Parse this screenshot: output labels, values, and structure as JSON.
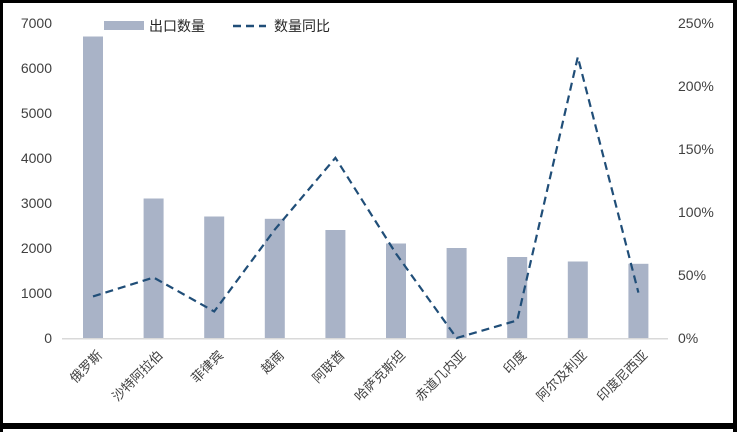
{
  "chart_data": {
    "type": "bar+line combo",
    "title": "",
    "categories": [
      "俄罗斯",
      "沙特阿拉伯",
      "菲律宾",
      "越南",
      "阿联酋",
      "哈萨克斯坦",
      "赤道几内亚",
      "印度",
      "阿尔及利亚",
      "印度尼西亚"
    ],
    "series": [
      {
        "name": "出口数量",
        "type": "bar",
        "axis": "left",
        "color": "#a9b3c7",
        "values": [
          6700,
          3100,
          2700,
          2650,
          2400,
          2100,
          2000,
          1800,
          1700,
          1650
        ]
      },
      {
        "name": "数量同比",
        "type": "dashed-line",
        "axis": "right",
        "color": "#204e78",
        "values_pct": [
          33,
          48,
          21,
          86,
          143,
          67,
          0,
          14,
          223,
          36
        ]
      }
    ],
    "left_axis": {
      "min": 0,
      "max": 7000,
      "step": 1000,
      "ticks": [
        "0",
        "1000",
        "2000",
        "3000",
        "4000",
        "5000",
        "6000",
        "7000"
      ]
    },
    "right_axis": {
      "min_pct": 0,
      "max_pct": 250,
      "step_pct": 50,
      "ticks": [
        "0%",
        "50%",
        "100%",
        "150%",
        "200%",
        "250%"
      ]
    },
    "legend": {
      "position": "top",
      "items": [
        "出口数量",
        "数量同比"
      ]
    },
    "grid": "off",
    "colors": {
      "axis_line": "#d9d9d9",
      "tick_text": "#404040",
      "legend_text": "#262626",
      "background": "#ffffff",
      "frame": "#000000"
    }
  }
}
